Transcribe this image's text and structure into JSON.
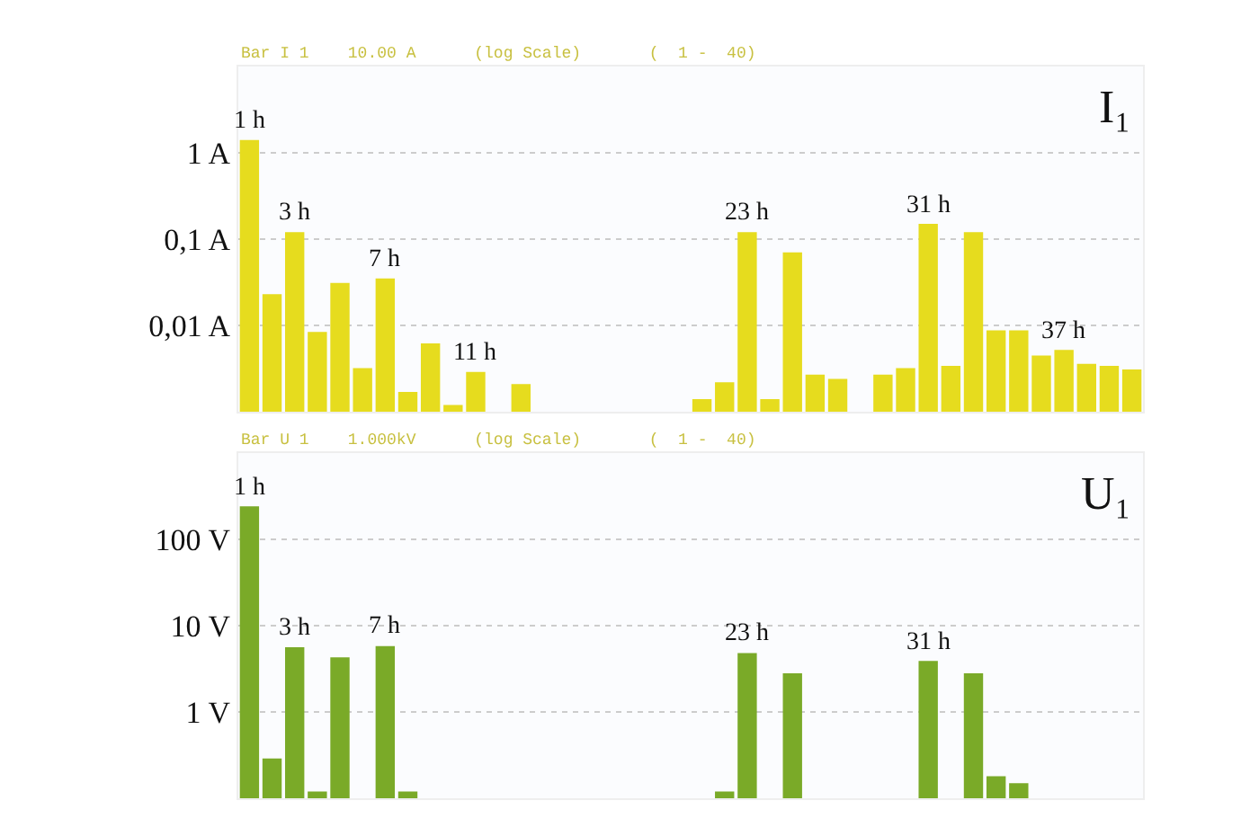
{
  "chart_data": [
    {
      "type": "bar",
      "title": "I₁",
      "subtitle": "Bar I 1    10.00 A      (log Scale)       (  1 -  40)",
      "log": true,
      "grid": "y",
      "tick_labels": "y",
      "categories": [
        null,
        null,
        null,
        null,
        null,
        null,
        null,
        null,
        null,
        null,
        null,
        null,
        null,
        null,
        null,
        null,
        null,
        null,
        null,
        null,
        null,
        null,
        null,
        null,
        null,
        null,
        null,
        null,
        null,
        null,
        null,
        null,
        null,
        null,
        null,
        null,
        null,
        null,
        null,
        null
      ],
      "series": [
        {
          "color": "#e6dc1e",
          "values": [
            1.4,
            0.023,
            0.12,
            0.0084,
            0.031,
            0.0032,
            0.035,
            0.0017,
            0.0062,
            0.0012,
            0.0029,
            null,
            0.0021,
            null,
            null,
            null,
            null,
            null,
            null,
            null,
            0.0014,
            0.0022,
            0.12,
            0.0014,
            0.07,
            0.0027,
            0.0024,
            null,
            0.0027,
            0.0032,
            0.15,
            0.0034,
            0.12,
            0.0088,
            0.0088,
            0.0045,
            0.0052,
            0.0036,
            0.0034,
            0.0031
          ]
        }
      ],
      "ylim": [
        0.001,
        10
      ],
      "yticks": [
        {
          "value": 0.01,
          "label": "0,01 A"
        },
        {
          "value": 0.1,
          "label": "0,1 A"
        },
        {
          "value": 1,
          "label": "1 A"
        }
      ],
      "annotations": [
        {
          "text": "1 h",
          "y": 1.4
        },
        {
          "text": "3 h",
          "y": 0.12
        },
        {
          "text": "7 h",
          "y": 0.035
        },
        {
          "text": "11 h",
          "y": 0.0029
        },
        {
          "text": "23 h",
          "y": 0.12
        },
        {
          "text": "31 h",
          "y": 0.15
        },
        {
          "text": "37 h",
          "y": 0.0052
        }
      ]
    },
    {
      "type": "bar",
      "title": "U₁",
      "subtitle": "Bar U 1    1.000kV      (log Scale)       (  1 -  40)",
      "log": true,
      "grid": "y",
      "tick_labels": "y",
      "categories": [
        null,
        null,
        null,
        null,
        null,
        null,
        null,
        null,
        null,
        null,
        null,
        null,
        null,
        null,
        null,
        null,
        null,
        null,
        null,
        null,
        null,
        null,
        null,
        null,
        null,
        null,
        null,
        null,
        null,
        null,
        null,
        null,
        null,
        null,
        null,
        null,
        null,
        null,
        null,
        null
      ],
      "series": [
        {
          "color": "#7aaa28",
          "values": [
            240,
            0.29,
            5.6,
            0.12,
            4.3,
            null,
            5.8,
            0.12,
            null,
            null,
            null,
            null,
            null,
            null,
            null,
            null,
            null,
            null,
            null,
            null,
            null,
            0.12,
            4.8,
            null,
            2.8,
            null,
            null,
            null,
            null,
            null,
            3.9,
            null,
            2.8,
            0.18,
            0.15,
            null,
            null,
            null,
            null,
            null
          ]
        }
      ],
      "ylim": [
        0.1,
        1000
      ],
      "yticks": [
        {
          "value": 1,
          "label": "1 V"
        },
        {
          "value": 10,
          "label": "10 V"
        },
        {
          "value": 100,
          "label": "100 V"
        }
      ],
      "annotations": [
        {
          "text": "1 h",
          "y": 240
        },
        {
          "text": "3 h",
          "y": 5.6
        },
        {
          "text": "7 h",
          "y": 5.8
        },
        {
          "text": "23 h",
          "y": 4.8
        },
        {
          "text": "31 h",
          "y": 3.9
        }
      ]
    }
  ]
}
